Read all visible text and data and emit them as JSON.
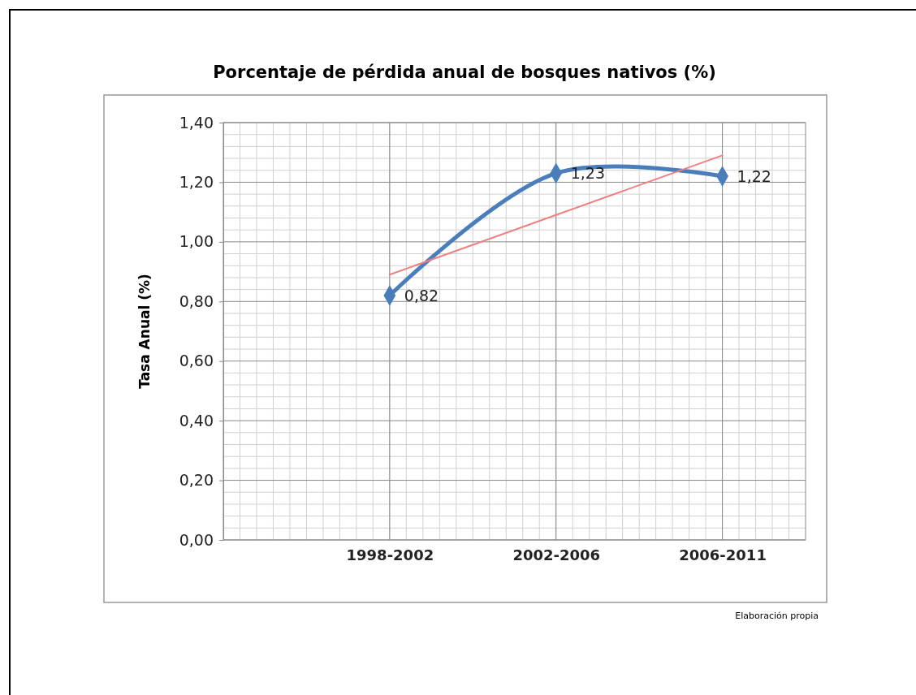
{
  "chart_data": {
    "type": "line",
    "title": "Porcentaje de pérdida anual de bosques nativos (%)",
    "ylabel": "Tasa Anual (%)",
    "categories": [
      null,
      "1998-2002",
      "2002-2006",
      "2006-2011"
    ],
    "series": [
      {
        "color": "#4a7ebb",
        "values": [
          null,
          0.82,
          1.23,
          1.22
        ],
        "value_labels": [
          null,
          "0,82",
          "1,23",
          "1,22"
        ],
        "marker": "diamond"
      },
      {
        "color": "#f08080",
        "values": [
          null,
          0.89,
          1.09,
          1.29
        ],
        "marker": "none"
      }
    ],
    "ylim": [
      0,
      1.4
    ],
    "yticks": [
      {
        "value": 0,
        "label": "0,00"
      },
      {
        "value": 0.2,
        "label": "0,20"
      },
      {
        "value": 0.4,
        "label": "0,40"
      },
      {
        "value": 0.6,
        "label": "0,60"
      },
      {
        "value": 0.8,
        "label": "0,80"
      },
      {
        "value": 1,
        "label": "1,00"
      },
      {
        "value": 1.2,
        "label": "1,20"
      },
      {
        "value": 1.4,
        "label": "1,40"
      }
    ],
    "grid": true,
    "annotations": [
      "Elaboración propia"
    ]
  }
}
